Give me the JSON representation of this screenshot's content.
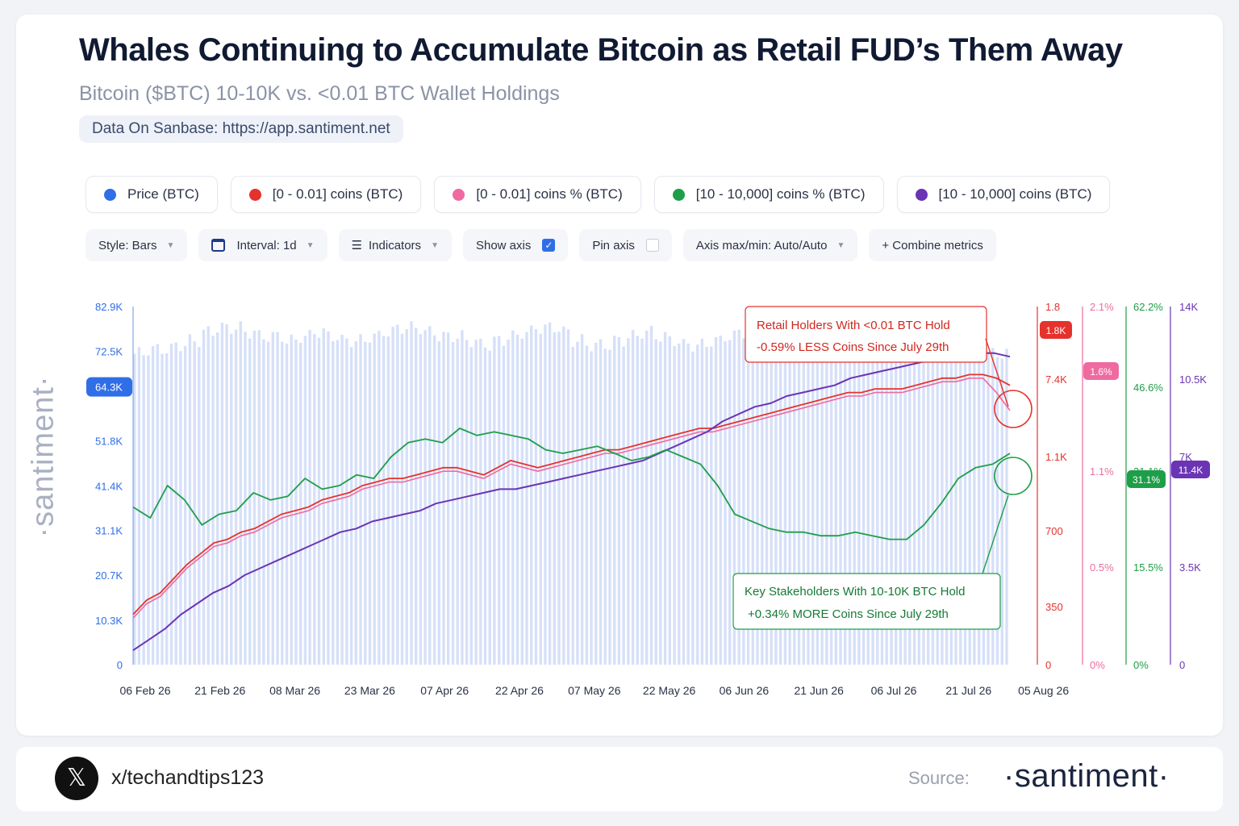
{
  "header": {
    "title": "Whales Continuing to Accumulate Bitcoin as Retail FUD’s Them Away",
    "subtitle": "Bitcoin ($BTC) 10-10K vs. <0.01 BTC Wallet Holdings",
    "data_source": "Data On Sanbase: https://app.santiment.net"
  },
  "legend": [
    {
      "label": "Price (BTC)",
      "color": "#2f6ee6"
    },
    {
      "label": "[0 - 0.01] coins (BTC)",
      "color": "#e5322d"
    },
    {
      "label": "[0 - 0.01] coins % (BTC)",
      "color": "#ef6aa0"
    },
    {
      "label": "[10 - 10,000] coins % (BTC)",
      "color": "#1e9e48"
    },
    {
      "label": "[10 - 10,000] coins (BTC)",
      "color": "#6a34b4"
    }
  ],
  "toolbar": {
    "style": "Style: Bars",
    "interval": "Interval: 1d",
    "indicators": "Indicators",
    "show_axis": "Show axis",
    "show_axis_checked": true,
    "pin_axis": "Pin axis",
    "pin_axis_checked": false,
    "axis_maxmin": "Axis max/min: Auto/Auto",
    "combine": "+ Combine metrics"
  },
  "watermark": "·santiment·",
  "footer": {
    "handle": "x/techandtips123",
    "source_label": "Source:",
    "brand": "·santiment·"
  },
  "chart_data": {
    "type": "bar",
    "x_tick_labels": [
      "06 Feb 26",
      "21 Feb 26",
      "08 Mar 26",
      "23 Mar 26",
      "07 Apr 26",
      "22 Apr 26",
      "07 May 26",
      "22 May 26",
      "06 Jun 26",
      "21 Jun 26",
      "06 Jul 26",
      "21 Jul 26",
      "05 Aug 26"
    ],
    "axes": {
      "price": {
        "ticks": [
          "0",
          "10.3K",
          "20.7K",
          "31.1K",
          "41.4K",
          "51.8K",
          "72.5K",
          "82.9K"
        ],
        "tick_values": [
          0,
          10300,
          20700,
          31100,
          41400,
          51800,
          72500,
          82900
        ],
        "range": [
          0,
          82900
        ],
        "current_label": "64.3K",
        "current_value": 64300,
        "color": "#2f6ee6"
      },
      "retail_coins": {
        "ticks": [
          "0",
          "350",
          "700",
          "1.1K",
          "7.4K",
          "1.8"
        ],
        "current_label": "1.8K",
        "color": "#e5322d"
      },
      "retail_pct": {
        "ticks": [
          "0%",
          "0.5%",
          "1.1%",
          "2.1%"
        ],
        "current_label": "1.6%",
        "color": "#ef6aa0"
      },
      "whale_pct": {
        "ticks": [
          "0%",
          "15.5%",
          "31.1%",
          "46.6%",
          "62.2%"
        ],
        "current_label": "31.1%",
        "color": "#1e9e48"
      },
      "whale_coins": {
        "ticks": [
          "0",
          "3.5K",
          "7K",
          "10.5K",
          "14K"
        ],
        "current_label": "11.4K",
        "color": "#6a34b4"
      }
    },
    "series": [
      {
        "name": "Price (BTC)",
        "kind": "bar",
        "values": [
          72,
          73,
          73,
          74,
          75,
          77,
          78,
          78,
          77,
          76,
          76,
          75,
          76,
          77,
          76,
          75,
          75,
          76,
          77,
          78,
          78,
          77,
          76,
          76,
          75,
          74,
          75,
          76,
          77,
          78,
          78,
          77,
          75,
          74,
          74,
          75,
          76,
          77,
          76,
          75,
          74,
          74,
          75,
          76,
          77,
          78,
          79,
          79,
          78,
          77,
          76,
          75,
          76,
          77,
          78,
          78,
          77,
          76,
          75,
          75,
          74,
          73,
          72,
          72
        ]
      },
      {
        "name": "[0 - 0.01] coins (BTC)",
        "kind": "line",
        "values": [
          14,
          18,
          20,
          24,
          28,
          31,
          34,
          35,
          37,
          38,
          40,
          42,
          43,
          44,
          46,
          47,
          48,
          50,
          51,
          52,
          52,
          53,
          54,
          55,
          55,
          54,
          53,
          55,
          57,
          56,
          55,
          56,
          57,
          58,
          59,
          60,
          60,
          61,
          62,
          63,
          64,
          65,
          66,
          66,
          67,
          68,
          69,
          70,
          71,
          72,
          73,
          74,
          75,
          76,
          76,
          77,
          77,
          77,
          78,
          79,
          80,
          80,
          81,
          81,
          80,
          78
        ]
      },
      {
        "name": "[0 - 0.01] coins % (BTC)",
        "kind": "line",
        "values": [
          13,
          17,
          19,
          23,
          27,
          30,
          33,
          34,
          36,
          37,
          39,
          41,
          42,
          43,
          45,
          46,
          47,
          49,
          50,
          51,
          51,
          52,
          53,
          54,
          54,
          53,
          52,
          54,
          56,
          55,
          54,
          55,
          56,
          57,
          58,
          59,
          59,
          60,
          61,
          62,
          63,
          64,
          65,
          65,
          66,
          67,
          68,
          69,
          70,
          71,
          72,
          73,
          74,
          75,
          75,
          76,
          76,
          76,
          77,
          78,
          79,
          79,
          80,
          80,
          76,
          71
        ]
      },
      {
        "name": "[10 - 10,000] coins % (BTC)",
        "kind": "line",
        "values": [
          44,
          41,
          50,
          46,
          39,
          42,
          43,
          48,
          46,
          47,
          52,
          49,
          50,
          53,
          52,
          58,
          62,
          63,
          62,
          66,
          64,
          65,
          64,
          63,
          60,
          59,
          60,
          61,
          59,
          57,
          58,
          60,
          58,
          56,
          50,
          42,
          40,
          38,
          37,
          37,
          36,
          36,
          37,
          36,
          35,
          35,
          39,
          45,
          52,
          55,
          56,
          59
        ]
      },
      {
        "name": "[10 - 10,000] coins (BTC)",
        "kind": "line",
        "values": [
          4,
          7,
          10,
          14,
          17,
          20,
          22,
          25,
          27,
          29,
          31,
          33,
          35,
          37,
          38,
          40,
          41,
          42,
          43,
          45,
          46,
          47,
          48,
          49,
          49,
          50,
          51,
          52,
          53,
          54,
          55,
          56,
          57,
          59,
          61,
          63,
          65,
          68,
          70,
          72,
          73,
          75,
          76,
          77,
          78,
          80,
          81,
          82,
          83,
          84,
          85,
          86,
          86,
          87,
          87,
          86
        ]
      }
    ],
    "annotations": [
      {
        "text": [
          "Retail Holders With <0.01 BTC Hold",
          "-0.59% LESS Coins Since July 29th"
        ],
        "color": "#e5322d"
      },
      {
        "text": [
          "Key Stakeholders With 10-10K BTC Hold",
          "+0.34% MORE Coins Since July 29th"
        ],
        "color": "#1e9e48"
      }
    ],
    "grid": false,
    "legend_position": "top"
  }
}
